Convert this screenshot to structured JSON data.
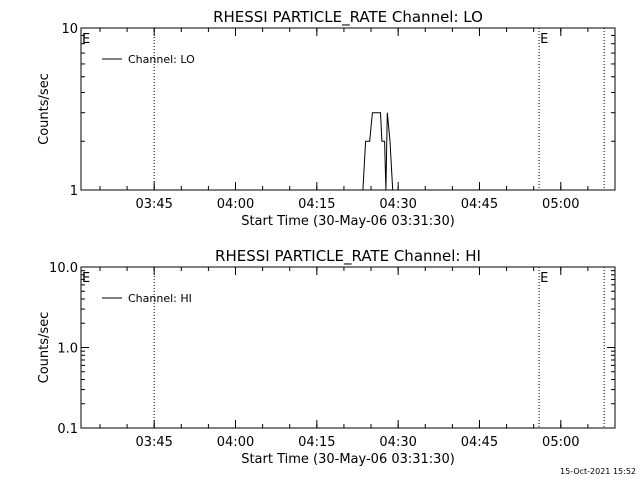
{
  "timestamp": "15-Oct-2021 15:52",
  "colors": {
    "background": "#ffffff",
    "foreground": "#000000"
  },
  "chart_data": [
    {
      "type": "line",
      "title": "RHESSI PARTICLE_RATE Channel: LO",
      "xlabel": "Start Time (30-May-06 03:31:30)",
      "ylabel": "Counts/sec",
      "y_scale": "log",
      "ylim": [
        1,
        10
      ],
      "y_ticks": [
        {
          "value": 1,
          "label": "1"
        },
        {
          "value": 10,
          "label": "10"
        }
      ],
      "xlim": [
        "03:31:30",
        "05:10:00"
      ],
      "x_ticks": [
        "03:45",
        "04:00",
        "04:15",
        "04:30",
        "04:45",
        "05:00"
      ],
      "grid": false,
      "legend": {
        "position": "top-left",
        "entries": [
          "Channel: LO"
        ]
      },
      "markers": [
        {
          "time": "03:31:30",
          "label": "E"
        },
        {
          "time": "03:45:00",
          "label": ""
        },
        {
          "time": "04:56:00",
          "label": "E"
        },
        {
          "time": "05:08:00",
          "label": ""
        }
      ],
      "series": [
        {
          "name": "Channel: LO",
          "points": [
            [
              "04:23:30",
              1
            ],
            [
              "04:24:00",
              2
            ],
            [
              "04:24:45",
              2
            ],
            [
              "04:25:15",
              3
            ],
            [
              "04:26:45",
              3
            ],
            [
              "04:27:00",
              2
            ],
            [
              "04:27:30",
              2
            ],
            [
              "04:27:45",
              1
            ],
            [
              "04:28:00",
              3
            ],
            [
              "04:28:30",
              2
            ],
            [
              "04:29:00",
              1
            ],
            [
              "04:29:15",
              1
            ]
          ]
        }
      ]
    },
    {
      "type": "line",
      "title": "RHESSI PARTICLE_RATE Channel: HI",
      "xlabel": "Start Time (30-May-06 03:31:30)",
      "ylabel": "Counts/sec",
      "y_scale": "log",
      "ylim": [
        0.1,
        10
      ],
      "y_ticks": [
        {
          "value": 0.1,
          "label": "0.1"
        },
        {
          "value": 1,
          "label": "1.0"
        },
        {
          "value": 10,
          "label": "10.0"
        }
      ],
      "xlim": [
        "03:31:30",
        "05:10:00"
      ],
      "x_ticks": [
        "03:45",
        "04:00",
        "04:15",
        "04:30",
        "04:45",
        "05:00"
      ],
      "grid": false,
      "legend": {
        "position": "top-left",
        "entries": [
          "Channel: HI"
        ]
      },
      "markers": [
        {
          "time": "03:31:30",
          "label": "E"
        },
        {
          "time": "03:45:00",
          "label": ""
        },
        {
          "time": "04:56:00",
          "label": "E"
        },
        {
          "time": "05:08:00",
          "label": ""
        }
      ],
      "series": [
        {
          "name": "Channel: HI",
          "points": []
        }
      ]
    }
  ]
}
